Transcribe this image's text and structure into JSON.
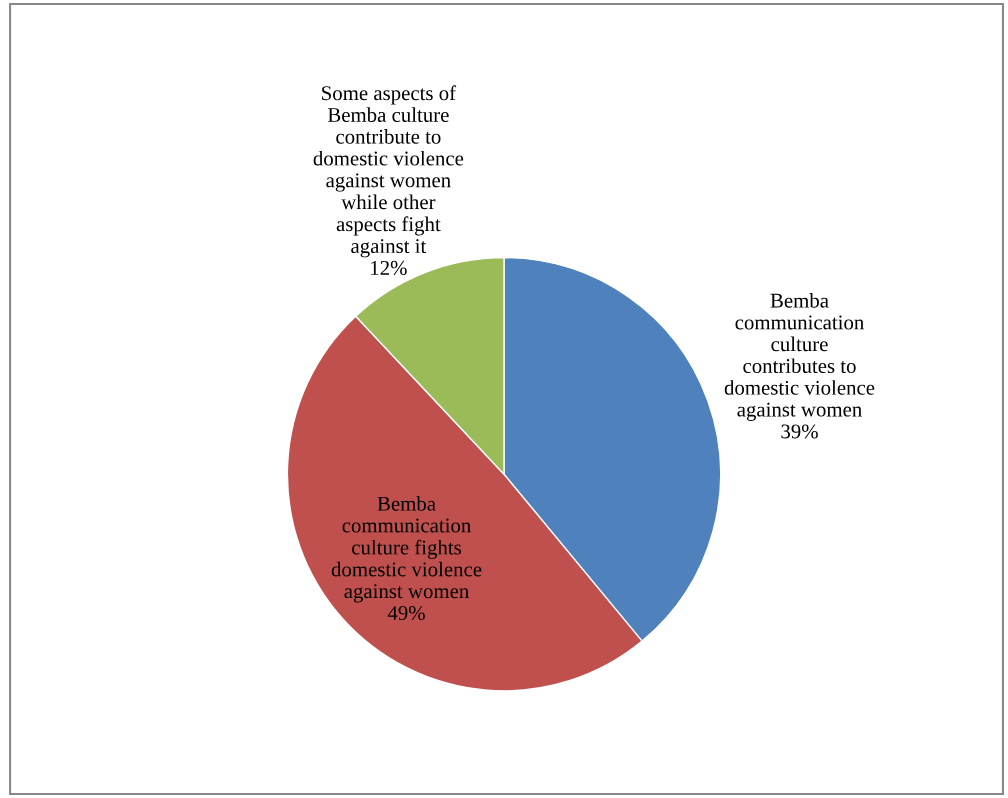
{
  "chart_data": {
    "type": "pie",
    "categories": [
      "Bemba\ncommunication\nculture\ncontributes to\ndomestic violence\nagainst women",
      "Bemba\ncommunication\nculture fights\ndomestic violence\nagainst women",
      "Some aspects of\nBemba culture\ncontribute to\ndomestic violence\nagainst women\nwhile other\naspects fight\nagainst it"
    ],
    "values": [
      39,
      49,
      12
    ],
    "value_labels": [
      "39%",
      "49%",
      "12%"
    ],
    "colors": [
      "#4f81bd",
      "#c0504d",
      "#9bbb59"
    ],
    "legend": false
  }
}
